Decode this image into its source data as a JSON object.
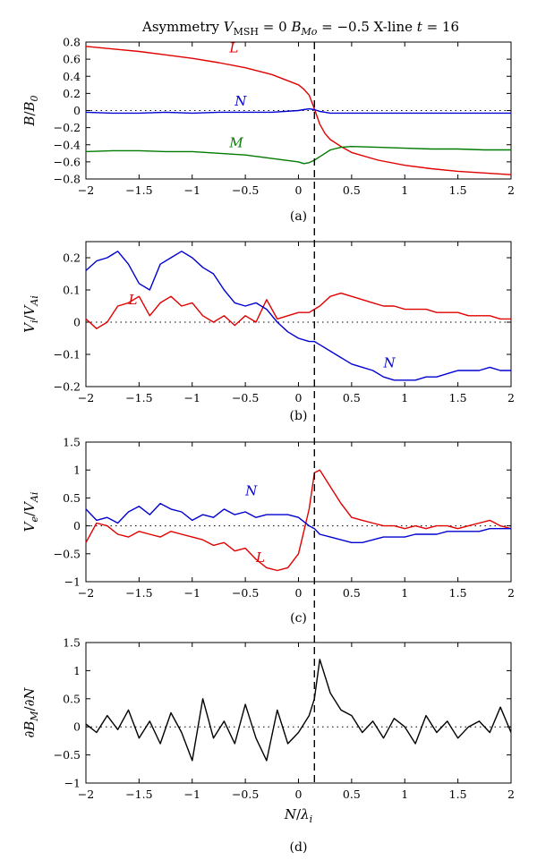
{
  "title": "Asymmetry V_MSH = 0 B_Mo = −0.5 X-line t = 16",
  "title_parts": {
    "lead": "Asymmetry ",
    "v": "V",
    "v_sub": "MSH",
    "eq1": " = 0 ",
    "b": "B",
    "b_sub": "Mo",
    "eq2": " = −0.5 X-line ",
    "t": "t",
    "eq3": " = 16"
  },
  "x_label": {
    "main": "N",
    "slash": "/",
    "lambda": "λ",
    "sub": "i"
  },
  "x_ticks": [
    "−2",
    "−1.5",
    "−1",
    "−0.5",
    "0",
    "0.5",
    "1",
    "1.5",
    "2"
  ],
  "colors": {
    "L": "#e00000",
    "N": "#0000d0",
    "M": "#007a00",
    "black": "#000000"
  },
  "xline_position": 0.15,
  "chart_data": [
    {
      "type": "line",
      "panel_label": "(a)",
      "ylabel_parts": {
        "main": "B",
        "slash": "/",
        "main2": "B",
        "sub2": "0"
      },
      "xlim": [
        -2,
        2
      ],
      "ylim": [
        -0.8,
        0.8
      ],
      "y_ticks": [
        "−0.8",
        "−0.6",
        "−0.4",
        "−0.2",
        "0",
        "0.2",
        "0.4",
        "0.6",
        "0.8"
      ],
      "x": [
        -2.0,
        -1.75,
        -1.5,
        -1.25,
        -1.0,
        -0.75,
        -0.5,
        -0.25,
        0.0,
        0.05,
        0.1,
        0.15,
        0.2,
        0.25,
        0.3,
        0.4,
        0.5,
        0.75,
        1.0,
        1.25,
        1.5,
        1.75,
        2.0
      ],
      "series": [
        {
          "name": "L",
          "color_key": "L",
          "label_at": [
            -0.65,
            0.68
          ],
          "values": [
            0.75,
            0.72,
            0.69,
            0.65,
            0.61,
            0.56,
            0.5,
            0.42,
            0.3,
            0.25,
            0.18,
            0.02,
            -0.16,
            -0.27,
            -0.34,
            -0.42,
            -0.49,
            -0.58,
            -0.64,
            -0.68,
            -0.71,
            -0.73,
            -0.75
          ]
        },
        {
          "name": "N",
          "color_key": "N",
          "label_at": [
            -0.6,
            0.06
          ],
          "values": [
            -0.02,
            -0.03,
            -0.03,
            -0.02,
            -0.03,
            -0.02,
            -0.02,
            -0.02,
            0.0,
            0.01,
            0.02,
            0.01,
            -0.01,
            -0.02,
            -0.03,
            -0.03,
            -0.03,
            -0.03,
            -0.03,
            -0.03,
            -0.03,
            -0.03,
            -0.03
          ]
        },
        {
          "name": "M",
          "color_key": "M",
          "label_at": [
            -0.65,
            -0.43
          ],
          "values": [
            -0.48,
            -0.47,
            -0.47,
            -0.48,
            -0.48,
            -0.5,
            -0.52,
            -0.56,
            -0.6,
            -0.62,
            -0.61,
            -0.58,
            -0.54,
            -0.5,
            -0.46,
            -0.43,
            -0.42,
            -0.43,
            -0.44,
            -0.45,
            -0.45,
            -0.46,
            -0.46
          ]
        }
      ]
    },
    {
      "type": "line",
      "panel_label": "(b)",
      "ylabel_parts": {
        "main": "V",
        "sub": "i",
        "slash": "/",
        "main2": "V",
        "sub2": "Ai"
      },
      "xlim": [
        -2,
        2
      ],
      "ylim": [
        -0.2,
        0.25
      ],
      "y_ticks": [
        "−0.2",
        "−0.1",
        "0",
        "0.1",
        "0.2"
      ],
      "x": [
        -2.0,
        -1.9,
        -1.8,
        -1.7,
        -1.6,
        -1.5,
        -1.4,
        -1.3,
        -1.2,
        -1.1,
        -1.0,
        -0.9,
        -0.8,
        -0.7,
        -0.6,
        -0.5,
        -0.4,
        -0.3,
        -0.2,
        -0.1,
        0.0,
        0.1,
        0.15,
        0.2,
        0.3,
        0.4,
        0.5,
        0.6,
        0.7,
        0.8,
        0.9,
        1.0,
        1.1,
        1.2,
        1.3,
        1.4,
        1.5,
        1.6,
        1.7,
        1.8,
        1.9,
        2.0
      ],
      "series": [
        {
          "name": "L",
          "color_key": "L",
          "label_at": [
            -1.6,
            0.055
          ],
          "values": [
            0.01,
            -0.02,
            0.0,
            0.05,
            0.06,
            0.08,
            0.02,
            0.06,
            0.08,
            0.05,
            0.06,
            0.02,
            0.0,
            0.02,
            -0.01,
            0.02,
            0.0,
            0.07,
            0.01,
            0.02,
            0.03,
            0.03,
            0.04,
            0.05,
            0.08,
            0.09,
            0.08,
            0.07,
            0.06,
            0.05,
            0.05,
            0.04,
            0.04,
            0.04,
            0.03,
            0.03,
            0.03,
            0.02,
            0.02,
            0.02,
            0.01,
            0.01
          ]
        },
        {
          "name": "N",
          "color_key": "N",
          "label_at": [
            0.8,
            -0.14
          ],
          "values": [
            0.16,
            0.19,
            0.2,
            0.22,
            0.18,
            0.12,
            0.1,
            0.18,
            0.2,
            0.22,
            0.2,
            0.17,
            0.15,
            0.1,
            0.06,
            0.05,
            0.06,
            0.04,
            0.0,
            -0.03,
            -0.05,
            -0.06,
            -0.06,
            -0.07,
            -0.09,
            -0.11,
            -0.13,
            -0.14,
            -0.15,
            -0.17,
            -0.18,
            -0.18,
            -0.18,
            -0.17,
            -0.17,
            -0.16,
            -0.15,
            -0.15,
            -0.15,
            -0.14,
            -0.15,
            -0.15
          ]
        }
      ]
    },
    {
      "type": "line",
      "panel_label": "(c)",
      "ylabel_parts": {
        "main": "V",
        "sub": "e",
        "slash": "/",
        "main2": "V",
        "sub2": "Ai"
      },
      "xlim": [
        -2,
        2
      ],
      "ylim": [
        -1,
        1.5
      ],
      "y_ticks": [
        "−1",
        "−0.5",
        "0",
        "0.5",
        "1",
        "1.5"
      ],
      "x": [
        -2.0,
        -1.9,
        -1.8,
        -1.7,
        -1.6,
        -1.5,
        -1.4,
        -1.3,
        -1.2,
        -1.1,
        -1.0,
        -0.9,
        -0.8,
        -0.7,
        -0.6,
        -0.5,
        -0.4,
        -0.3,
        -0.2,
        -0.1,
        0.0,
        0.1,
        0.15,
        0.2,
        0.3,
        0.4,
        0.5,
        0.6,
        0.7,
        0.8,
        0.9,
        1.0,
        1.1,
        1.2,
        1.3,
        1.4,
        1.5,
        1.6,
        1.7,
        1.8,
        1.9,
        2.0
      ],
      "series": [
        {
          "name": "L",
          "color_key": "L",
          "label_at": [
            -0.4,
            -0.65
          ],
          "values": [
            -0.3,
            0.05,
            0.0,
            -0.15,
            -0.2,
            -0.1,
            -0.15,
            -0.2,
            -0.1,
            -0.15,
            -0.2,
            -0.25,
            -0.35,
            -0.3,
            -0.45,
            -0.4,
            -0.6,
            -0.75,
            -0.8,
            -0.75,
            -0.5,
            0.3,
            0.95,
            1.0,
            0.7,
            0.4,
            0.15,
            0.1,
            0.05,
            0.0,
            0.0,
            -0.05,
            0.0,
            -0.05,
            0.0,
            0.0,
            -0.05,
            0.0,
            0.05,
            0.1,
            0.0,
            -0.05
          ]
        },
        {
          "name": "N",
          "color_key": "N",
          "label_at": [
            -0.5,
            0.55
          ],
          "values": [
            0.3,
            0.1,
            0.15,
            0.05,
            0.25,
            0.35,
            0.2,
            0.4,
            0.3,
            0.25,
            0.1,
            0.2,
            0.15,
            0.3,
            0.2,
            0.25,
            0.15,
            0.2,
            0.2,
            0.2,
            0.15,
            0.0,
            -0.05,
            -0.15,
            -0.2,
            -0.25,
            -0.3,
            -0.3,
            -0.25,
            -0.2,
            -0.2,
            -0.2,
            -0.15,
            -0.15,
            -0.15,
            -0.1,
            -0.1,
            -0.1,
            -0.1,
            -0.05,
            -0.05,
            -0.05
          ]
        }
      ]
    },
    {
      "type": "line",
      "panel_label": "(d)",
      "ylabel_parts": {
        "partial": "∂",
        "main": "B",
        "sub": "M",
        "slash": "/",
        "partial2": "∂",
        "main2": "N"
      },
      "xlim": [
        -2,
        2
      ],
      "ylim": [
        -1,
        1.5
      ],
      "y_ticks": [
        "−1",
        "−0.5",
        "0",
        "0.5",
        "1",
        "1.5"
      ],
      "x": [
        -2.0,
        -1.9,
        -1.8,
        -1.7,
        -1.6,
        -1.5,
        -1.4,
        -1.3,
        -1.2,
        -1.1,
        -1.0,
        -0.9,
        -0.8,
        -0.7,
        -0.6,
        -0.5,
        -0.4,
        -0.3,
        -0.2,
        -0.1,
        0.0,
        0.1,
        0.15,
        0.2,
        0.25,
        0.3,
        0.4,
        0.5,
        0.6,
        0.7,
        0.8,
        0.9,
        1.0,
        1.1,
        1.2,
        1.3,
        1.4,
        1.5,
        1.6,
        1.7,
        1.8,
        1.9,
        2.0
      ],
      "series": [
        {
          "name": "",
          "color_key": "black",
          "values": [
            0.05,
            -0.1,
            0.2,
            -0.05,
            0.3,
            -0.2,
            0.1,
            -0.3,
            0.25,
            -0.1,
            -0.6,
            0.5,
            -0.2,
            0.1,
            -0.3,
            0.4,
            -0.2,
            -0.6,
            0.3,
            -0.3,
            -0.1,
            0.2,
            0.5,
            1.2,
            0.9,
            0.6,
            0.3,
            0.2,
            -0.1,
            0.1,
            -0.2,
            0.15,
            0.0,
            -0.3,
            0.2,
            -0.1,
            0.1,
            -0.2,
            0.0,
            0.1,
            -0.1,
            0.35,
            -0.1
          ]
        }
      ]
    }
  ]
}
